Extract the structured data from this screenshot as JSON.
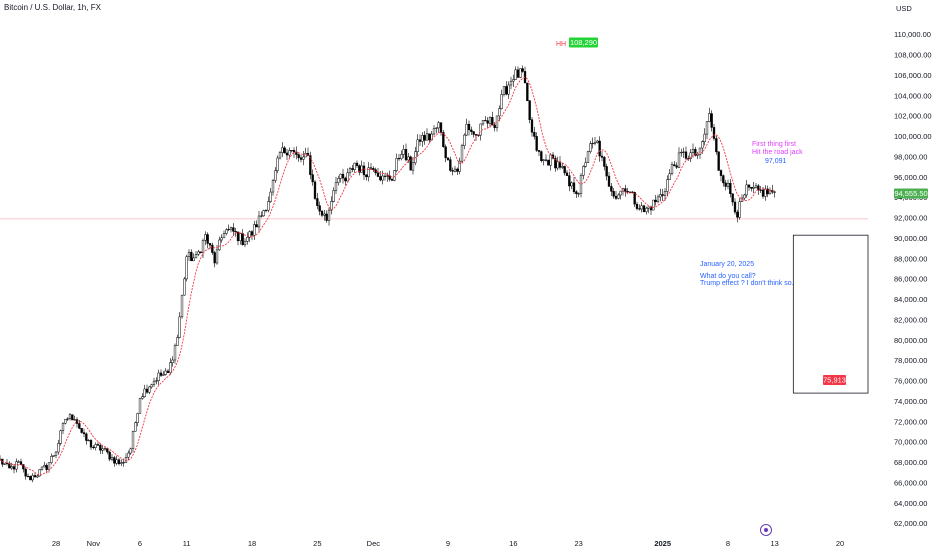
{
  "header": {
    "title": "Bitcoin / U.S. Dollar, 1h, FX",
    "currency": "USD"
  },
  "chart_data": {
    "type": "candlestick",
    "title": "Bitcoin / U.S. Dollar, 1h, FX",
    "ylim": [
      61000,
      112000
    ],
    "y_ticks": [
      62000,
      64000,
      66000,
      68000,
      70000,
      72000,
      74000,
      76000,
      78000,
      80000,
      82000,
      84000,
      86000,
      88000,
      90000,
      92000,
      94000,
      96000,
      98000,
      100000,
      102000,
      104000,
      106000,
      108000,
      110000
    ],
    "y_tick_labels": [
      "62,000.00",
      "64,000.00",
      "66,000.00",
      "68,000.00",
      "70,000.00",
      "72,000.00",
      "74,000.00",
      "76,000.00",
      "78,000.00",
      "80,000.00",
      "82,000.00",
      "84,000.00",
      "86,000.00",
      "88,000.00",
      "90,000.00",
      "92,000.00",
      "94,000.00",
      "96,000.00",
      "98,000.00",
      "100,000.00",
      "102,000.00",
      "104,000.00",
      "106,000.00",
      "108,000.00",
      "110,000.00"
    ],
    "x_range": [
      "2024-10-22",
      "2025-01-23"
    ],
    "x_ticks": [
      {
        "date": "2024-10-28",
        "label": "28",
        "bold": false
      },
      {
        "date": "2024-11-01",
        "label": "Nov",
        "bold": false
      },
      {
        "date": "2024-11-06",
        "label": "6",
        "bold": false
      },
      {
        "date": "2024-11-11",
        "label": "11",
        "bold": false
      },
      {
        "date": "2024-11-18",
        "label": "18",
        "bold": false
      },
      {
        "date": "2024-11-25",
        "label": "25",
        "bold": false
      },
      {
        "date": "2024-12-01",
        "label": "Dec",
        "bold": false
      },
      {
        "date": "2024-12-09",
        "label": "9",
        "bold": false
      },
      {
        "date": "2024-12-16",
        "label": "16",
        "bold": false
      },
      {
        "date": "2024-12-23",
        "label": "23",
        "bold": false
      },
      {
        "date": "2025-01-01",
        "label": "2025",
        "bold": true
      },
      {
        "date": "2025-01-08",
        "label": "8",
        "bold": false
      },
      {
        "date": "2025-01-13",
        "label": "13",
        "bold": false
      },
      {
        "date": "2025-01-20",
        "label": "20",
        "bold": false
      }
    ],
    "price_path": [
      [
        "2024-10-22",
        68200
      ],
      [
        "2024-10-23",
        67300
      ],
      [
        "2024-10-24",
        67900
      ],
      [
        "2024-10-25",
        66400
      ],
      [
        "2024-10-26",
        66900
      ],
      [
        "2024-10-27",
        67600
      ],
      [
        "2024-10-28",
        69200
      ],
      [
        "2024-10-29",
        72300
      ],
      [
        "2024-10-30",
        72500
      ],
      [
        "2024-10-31",
        70400
      ],
      [
        "2024-11-01",
        69500
      ],
      [
        "2024-11-02",
        69300
      ],
      [
        "2024-11-03",
        68400
      ],
      [
        "2024-11-04",
        67800
      ],
      [
        "2024-11-05",
        69400
      ],
      [
        "2024-11-06",
        74500
      ],
      [
        "2024-11-07",
        75600
      ],
      [
        "2024-11-08",
        76500
      ],
      [
        "2024-11-09",
        76700
      ],
      [
        "2024-11-10",
        80300
      ],
      [
        "2024-11-11",
        88200
      ],
      [
        "2024-11-12",
        88000
      ],
      [
        "2024-11-13",
        90200
      ],
      [
        "2024-11-14",
        87800
      ],
      [
        "2024-11-15",
        90800
      ],
      [
        "2024-11-16",
        90600
      ],
      [
        "2024-11-17",
        89800
      ],
      [
        "2024-11-18",
        90500
      ],
      [
        "2024-11-19",
        92300
      ],
      [
        "2024-11-20",
        94300
      ],
      [
        "2024-11-21",
        98300
      ],
      [
        "2024-11-22",
        98900
      ],
      [
        "2024-11-23",
        97700
      ],
      [
        "2024-11-24",
        97900
      ],
      [
        "2024-11-25",
        93000
      ],
      [
        "2024-11-26",
        91900
      ],
      [
        "2024-11-27",
        95900
      ],
      [
        "2024-11-28",
        95600
      ],
      [
        "2024-11-29",
        97400
      ],
      [
        "2024-11-30",
        96400
      ],
      [
        "2024-12-01",
        97200
      ],
      [
        "2024-12-02",
        95800
      ],
      [
        "2024-12-03",
        96000
      ],
      [
        "2024-12-04",
        98700
      ],
      [
        "2024-12-05",
        97000
      ],
      [
        "2024-12-06",
        99800
      ],
      [
        "2024-12-07",
        99900
      ],
      [
        "2024-12-08",
        101100
      ],
      [
        "2024-12-09",
        97400
      ],
      [
        "2024-12-10",
        96600
      ],
      [
        "2024-12-11",
        101100
      ],
      [
        "2024-12-12",
        100000
      ],
      [
        "2024-12-13",
        101400
      ],
      [
        "2024-12-14",
        101400
      ],
      [
        "2024-12-15",
        104300
      ],
      [
        "2024-12-16",
        106000
      ],
      [
        "2024-12-17",
        106100
      ],
      [
        "2024-12-18",
        100200
      ],
      [
        "2024-12-19",
        97500
      ],
      [
        "2024-12-20",
        97700
      ],
      [
        "2024-12-21",
        97200
      ],
      [
        "2024-12-22",
        95100
      ],
      [
        "2024-12-23",
        94700
      ],
      [
        "2024-12-24",
        98700
      ],
      [
        "2024-12-25",
        99300
      ],
      [
        "2024-12-26",
        95800
      ],
      [
        "2024-12-27",
        94200
      ],
      [
        "2024-12-28",
        95100
      ],
      [
        "2024-12-29",
        93700
      ],
      [
        "2024-12-30",
        92600
      ],
      [
        "2024-12-31",
        93400
      ],
      [
        "2025-01-01",
        94400
      ],
      [
        "2025-01-02",
        96900
      ],
      [
        "2025-01-03",
        98100
      ],
      [
        "2025-01-04",
        98200
      ],
      [
        "2025-01-05",
        98300
      ],
      [
        "2025-01-06",
        102200
      ],
      [
        "2025-01-07",
        96900
      ],
      [
        "2025-01-08",
        95000
      ],
      [
        "2025-01-09",
        92500
      ],
      [
        "2025-01-10",
        94700
      ],
      [
        "2025-01-11",
        94600
      ],
      [
        "2025-01-12",
        94500
      ],
      [
        "2025-01-13",
        94555
      ]
    ],
    "annotations": {
      "hh_label": "HH",
      "high_value": "108,290",
      "note_pink_line1": "First thing first",
      "note_pink_line2": "Hit the road jack",
      "target_value": "97,091",
      "current_price": "94,555.50",
      "date_note": "January 20, 2025",
      "note_blue_line1": "What do you call?",
      "note_blue_line2": "Trump effect ? I don't think so.",
      "low_target": "75,913"
    },
    "horizontal_line_price": 91900,
    "box": {
      "start": "2025-01-15",
      "end": "2025-01-23",
      "top": 90300,
      "bottom": 74800
    },
    "colors": {
      "candle": "#000000",
      "ma": "#f23645",
      "green_label": "#22d436",
      "price_label": "#4caf50",
      "red_label": "#f23645",
      "pink_text": "#e040fb",
      "blue_text": "#2962ff",
      "hline": "#f7b6bc"
    }
  }
}
